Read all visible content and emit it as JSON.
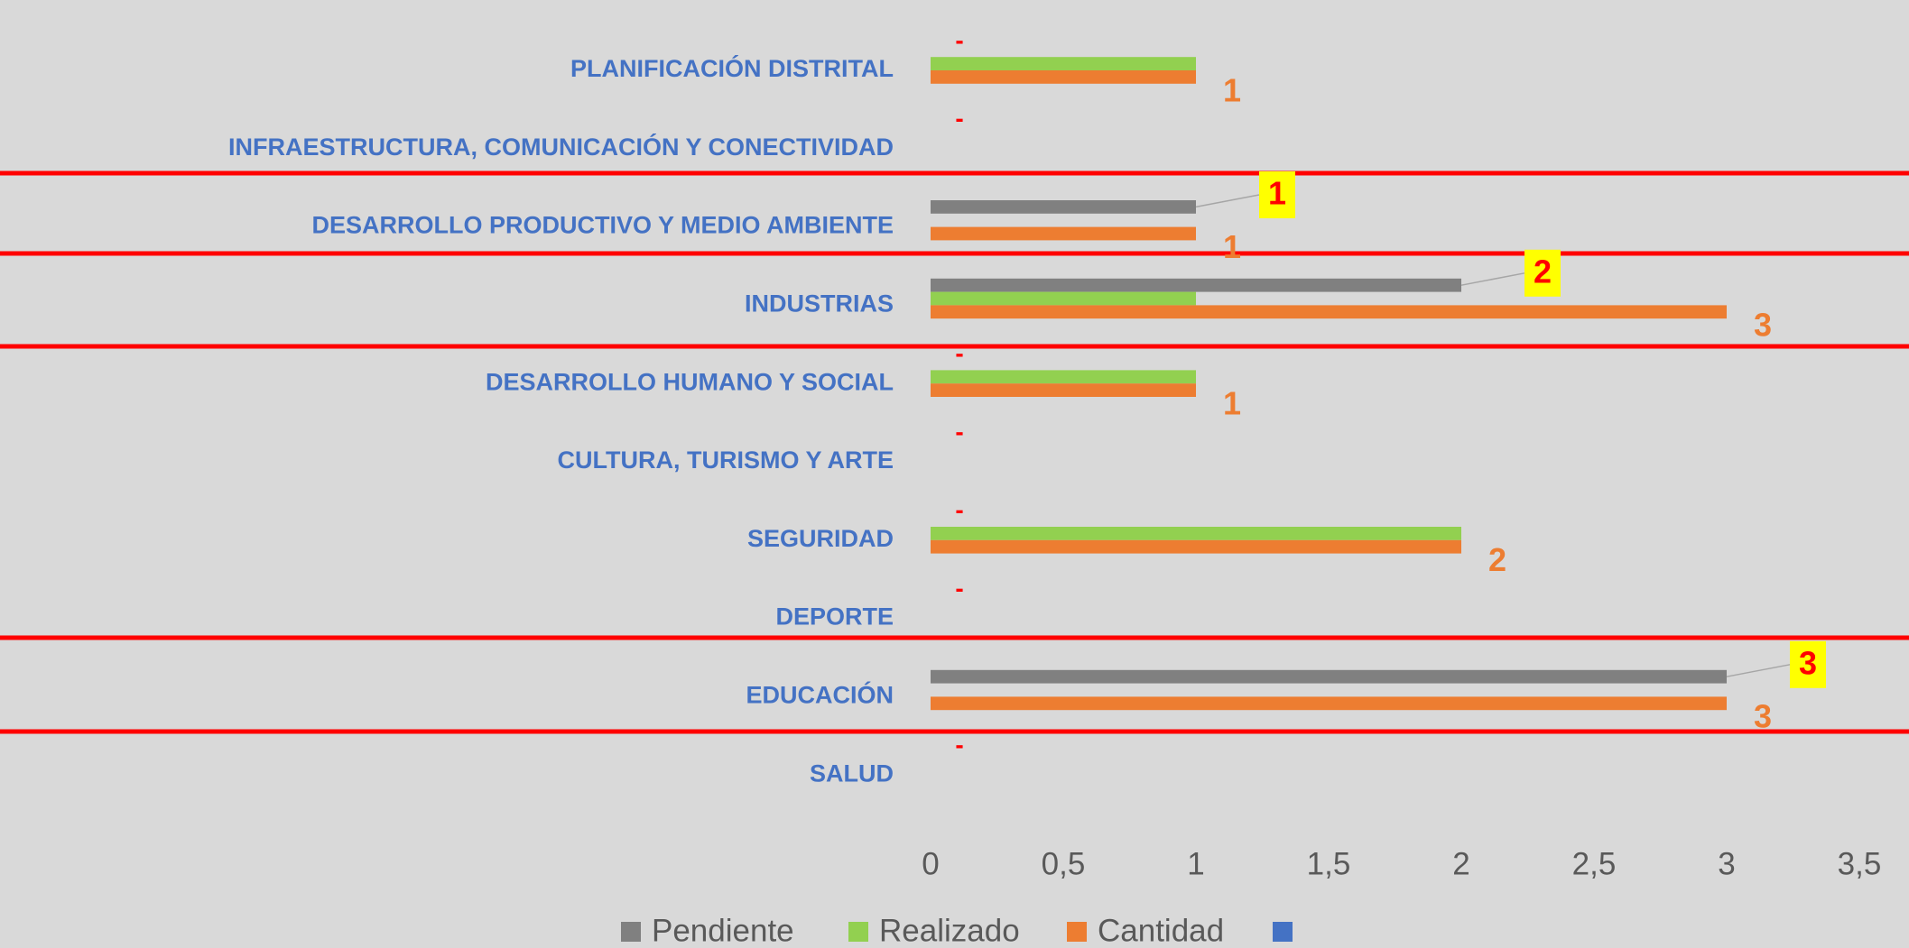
{
  "chart_data": {
    "type": "hbar",
    "categories": [
      "PLANIFICACIÓN DISTRITAL",
      "INFRAESTRUCTURA, COMUNICACIÓN Y CONECTIVIDAD",
      "DESARROLLO PRODUCTIVO Y MEDIO AMBIENTE",
      "INDUSTRIAS",
      "DESARROLLO HUMANO Y SOCIAL",
      "CULTURA, TURISMO Y ARTE",
      "SEGURIDAD",
      "DEPORTE",
      "EDUCACIÓN",
      "SALUD"
    ],
    "series": [
      {
        "name": "Pendiente",
        "color": "#808080",
        "values": [
          0,
          0,
          1,
          2,
          0,
          0,
          0,
          0,
          3,
          0
        ],
        "value_labels": [
          "-",
          "-",
          "1",
          "2",
          "-",
          "-",
          "-",
          "-",
          "3",
          "-"
        ]
      },
      {
        "name": "Realizado",
        "color": "#92d050",
        "values": [
          1,
          null,
          null,
          1,
          1,
          null,
          2,
          null,
          null,
          null
        ]
      },
      {
        "name": "Cantidad",
        "color": "#ed7d31",
        "values": [
          1,
          null,
          1,
          3,
          1,
          null,
          2,
          null,
          3,
          null
        ]
      },
      {
        "color": "#4472c4",
        "values": [
          null,
          null,
          null,
          null,
          null,
          null,
          null,
          null,
          null,
          null
        ]
      }
    ],
    "xlim": [
      0,
      3.5
    ],
    "xticks": [
      0,
      {
        "value": 0.5,
        "label": "0,5"
      },
      1,
      {
        "value": 1.5,
        "label": "1,5"
      },
      2,
      {
        "value": 2.5,
        "label": "2,5"
      },
      3,
      {
        "value": 3.5,
        "label": "3,5"
      }
    ],
    "grid": false,
    "legend": "bottom"
  }
}
